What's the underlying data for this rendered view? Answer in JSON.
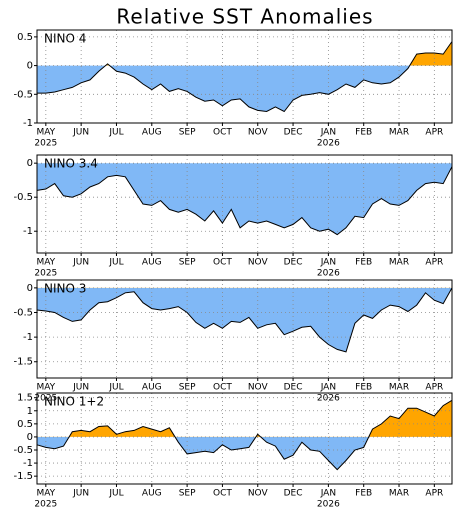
{
  "chart_data": [
    {
      "type": "area",
      "title": "Relative SST Anomalies",
      "label": "NINO 4",
      "x": [
        -0.25,
        0,
        0.25,
        0.5,
        0.75,
        1,
        1.25,
        1.5,
        1.75,
        2,
        2.25,
        2.5,
        2.75,
        3,
        3.25,
        3.5,
        3.75,
        4,
        4.25,
        4.5,
        4.75,
        5,
        5.25,
        5.5,
        5.75,
        6,
        6.25,
        6.5,
        6.75,
        7,
        7.25,
        7.5,
        7.75,
        8,
        8.25,
        8.5,
        8.75,
        9,
        9.25,
        9.5,
        9.75,
        10,
        10.25,
        10.5,
        10.75,
        11,
        11.25,
        11.5
      ],
      "values": [
        -0.48,
        -0.48,
        -0.46,
        -0.42,
        -0.38,
        -0.3,
        -0.25,
        -0.1,
        0.03,
        -0.1,
        -0.13,
        -0.2,
        -0.32,
        -0.42,
        -0.32,
        -0.45,
        -0.4,
        -0.45,
        -0.55,
        -0.62,
        -0.6,
        -0.7,
        -0.6,
        -0.58,
        -0.72,
        -0.78,
        -0.8,
        -0.72,
        -0.8,
        -0.6,
        -0.52,
        -0.5,
        -0.47,
        -0.5,
        -0.42,
        -0.32,
        -0.38,
        -0.25,
        -0.3,
        -0.32,
        -0.3,
        -0.2,
        -0.05,
        0.2,
        0.22,
        0.22,
        0.2,
        0.42
      ],
      "color_positive": "#ffa500",
      "color_negative": "#80b8f6",
      "xlim": [
        -0.25,
        11.5
      ],
      "ylim": [
        -1,
        0.62
      ],
      "yticks": [
        0.5,
        0,
        -0.5,
        -1
      ],
      "xticks": [
        {
          "value": 0,
          "label": "MAY"
        },
        {
          "value": 1,
          "label": "JUN"
        },
        {
          "value": 2,
          "label": "JUL"
        },
        {
          "value": 3,
          "label": "AUG"
        },
        {
          "value": 4,
          "label": "SEP"
        },
        {
          "value": 5,
          "label": "OCT"
        },
        {
          "value": 6,
          "label": "NOV"
        },
        {
          "value": 7,
          "label": "DEC"
        },
        {
          "value": 8,
          "label": "JAN"
        },
        {
          "value": 9,
          "label": "FEB"
        },
        {
          "value": 10,
          "label": "MAR"
        },
        {
          "value": 11,
          "label": "APR"
        }
      ],
      "year_labels": [
        {
          "value": 0,
          "label": "2025"
        },
        {
          "value": 8,
          "label": "2026"
        }
      ],
      "grid": true
    },
    {
      "type": "area",
      "label": "NINO 3.4",
      "x": [
        -0.25,
        0,
        0.25,
        0.5,
        0.75,
        1,
        1.25,
        1.5,
        1.75,
        2,
        2.25,
        2.5,
        2.75,
        3,
        3.25,
        3.5,
        3.75,
        4,
        4.25,
        4.5,
        4.75,
        5,
        5.25,
        5.5,
        5.75,
        6,
        6.25,
        6.5,
        6.75,
        7,
        7.25,
        7.5,
        7.75,
        8,
        8.25,
        8.5,
        8.75,
        9,
        9.25,
        9.5,
        9.75,
        10,
        10.25,
        10.5,
        10.75,
        11,
        11.25,
        11.5
      ],
      "values": [
        -0.4,
        -0.38,
        -0.3,
        -0.48,
        -0.5,
        -0.45,
        -0.35,
        -0.3,
        -0.2,
        -0.18,
        -0.2,
        -0.4,
        -0.6,
        -0.62,
        -0.55,
        -0.68,
        -0.72,
        -0.68,
        -0.75,
        -0.85,
        -0.7,
        -0.88,
        -0.68,
        -0.95,
        -0.85,
        -0.88,
        -0.85,
        -0.9,
        -0.95,
        -0.9,
        -0.8,
        -0.95,
        -1.0,
        -0.97,
        -1.05,
        -0.95,
        -0.78,
        -0.8,
        -0.6,
        -0.52,
        -0.6,
        -0.62,
        -0.55,
        -0.4,
        -0.3,
        -0.28,
        -0.3,
        -0.05
      ],
      "color_positive": "#ffa500",
      "color_negative": "#80b8f6",
      "xlim": [
        -0.25,
        11.5
      ],
      "ylim": [
        -1.32,
        0.12
      ],
      "yticks": [
        0,
        -0.5,
        -1
      ],
      "xticks": [
        {
          "value": 0,
          "label": "MAY"
        },
        {
          "value": 1,
          "label": "JUN"
        },
        {
          "value": 2,
          "label": "JUL"
        },
        {
          "value": 3,
          "label": "AUG"
        },
        {
          "value": 4,
          "label": "SEP"
        },
        {
          "value": 5,
          "label": "OCT"
        },
        {
          "value": 6,
          "label": "NOV"
        },
        {
          "value": 7,
          "label": "DEC"
        },
        {
          "value": 8,
          "label": "JAN"
        },
        {
          "value": 9,
          "label": "FEB"
        },
        {
          "value": 10,
          "label": "MAR"
        },
        {
          "value": 11,
          "label": "APR"
        }
      ],
      "year_labels": [
        {
          "value": 0,
          "label": "2025"
        },
        {
          "value": 8,
          "label": "2026"
        }
      ],
      "grid": true
    },
    {
      "type": "area",
      "label": "NINO 3",
      "x": [
        -0.25,
        0,
        0.25,
        0.5,
        0.75,
        1,
        1.25,
        1.5,
        1.75,
        2,
        2.25,
        2.5,
        2.75,
        3,
        3.25,
        3.5,
        3.75,
        4,
        4.25,
        4.5,
        4.75,
        5,
        5.25,
        5.5,
        5.75,
        6,
        6.25,
        6.5,
        6.75,
        7,
        7.25,
        7.5,
        7.75,
        8,
        8.25,
        8.5,
        8.75,
        9,
        9.25,
        9.5,
        9.75,
        10,
        10.25,
        10.5,
        10.75,
        11,
        11.25,
        11.5
      ],
      "values": [
        -0.45,
        -0.47,
        -0.5,
        -0.6,
        -0.68,
        -0.65,
        -0.45,
        -0.3,
        -0.28,
        -0.2,
        -0.1,
        -0.08,
        -0.3,
        -0.42,
        -0.45,
        -0.42,
        -0.38,
        -0.5,
        -0.7,
        -0.82,
        -0.72,
        -0.82,
        -0.68,
        -0.7,
        -0.6,
        -0.82,
        -0.75,
        -0.72,
        -0.95,
        -0.88,
        -0.8,
        -0.78,
        -1.0,
        -1.15,
        -1.25,
        -1.3,
        -0.72,
        -0.55,
        -0.62,
        -0.45,
        -0.35,
        -0.38,
        -0.48,
        -0.35,
        -0.1,
        -0.25,
        -0.32,
        0.0
      ],
      "color_positive": "#ffa500",
      "color_negative": "#80b8f6",
      "xlim": [
        -0.25,
        11.5
      ],
      "ylim": [
        -1.83,
        0.16
      ],
      "yticks": [
        0,
        -0.5,
        -1,
        -1.5
      ],
      "xticks": [
        {
          "value": 0,
          "label": "MAY"
        },
        {
          "value": 1,
          "label": "JUN"
        },
        {
          "value": 2,
          "label": "JUL"
        },
        {
          "value": 3,
          "label": "AUG"
        },
        {
          "value": 4,
          "label": "SEP"
        },
        {
          "value": 5,
          "label": "OCT"
        },
        {
          "value": 6,
          "label": "NOV"
        },
        {
          "value": 7,
          "label": "DEC"
        },
        {
          "value": 8,
          "label": "JAN"
        },
        {
          "value": 9,
          "label": "FEB"
        },
        {
          "value": 10,
          "label": "MAR"
        },
        {
          "value": 11,
          "label": "APR"
        }
      ],
      "year_labels": [
        {
          "value": 0,
          "label": "2025"
        },
        {
          "value": 8,
          "label": "2026"
        }
      ],
      "grid": true
    },
    {
      "type": "area",
      "label": "NINO 1+2",
      "x": [
        -0.25,
        0,
        0.25,
        0.5,
        0.75,
        1,
        1.25,
        1.5,
        1.75,
        2,
        2.25,
        2.5,
        2.75,
        3,
        3.25,
        3.5,
        3.75,
        4,
        4.25,
        4.5,
        4.75,
        5,
        5.25,
        5.5,
        5.75,
        6,
        6.25,
        6.5,
        6.75,
        7,
        7.25,
        7.5,
        7.75,
        8,
        8.25,
        8.5,
        8.75,
        9,
        9.25,
        9.5,
        9.75,
        10,
        10.25,
        10.5,
        10.75,
        11,
        11.25,
        11.5
      ],
      "values": [
        -0.3,
        -0.4,
        -0.45,
        -0.35,
        0.2,
        0.25,
        0.2,
        0.4,
        0.42,
        0.1,
        0.2,
        0.25,
        0.4,
        0.3,
        0.2,
        0.35,
        -0.2,
        -0.65,
        -0.6,
        -0.55,
        -0.6,
        -0.3,
        -0.5,
        -0.45,
        -0.4,
        0.1,
        -0.2,
        -0.35,
        -0.85,
        -0.7,
        -0.2,
        -0.5,
        -0.55,
        -0.9,
        -1.25,
        -0.9,
        -0.5,
        -0.4,
        0.3,
        0.5,
        0.8,
        0.7,
        1.1,
        1.1,
        0.95,
        0.8,
        1.2,
        1.4
      ],
      "color_positive": "#ffa500",
      "color_negative": "#80b8f6",
      "xlim": [
        -0.25,
        11.5
      ],
      "ylim": [
        -1.8,
        1.68
      ],
      "yticks": [
        1.5,
        1,
        0.5,
        0,
        -0.5,
        -1,
        -1.5
      ],
      "xticks": [
        {
          "value": 0,
          "label": "MAY"
        },
        {
          "value": 1,
          "label": "JUN"
        },
        {
          "value": 2,
          "label": "JUL"
        },
        {
          "value": 3,
          "label": "AUG"
        },
        {
          "value": 4,
          "label": "SEP"
        },
        {
          "value": 5,
          "label": "OCT"
        },
        {
          "value": 6,
          "label": "NOV"
        },
        {
          "value": 7,
          "label": "DEC"
        },
        {
          "value": 8,
          "label": "JAN"
        },
        {
          "value": 9,
          "label": "FEB"
        },
        {
          "value": 10,
          "label": "MAR"
        },
        {
          "value": 11,
          "label": "APR"
        }
      ],
      "year_labels": [
        {
          "value": 0,
          "label": "2025"
        },
        {
          "value": 8,
          "label": "2026"
        }
      ],
      "grid": true
    }
  ]
}
